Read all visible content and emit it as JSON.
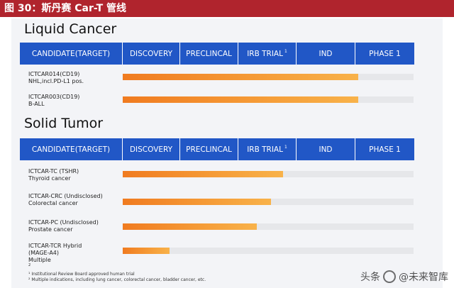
{
  "figure": {
    "title": "图 30：斯丹赛 Car-T 管线"
  },
  "chart_data": [
    {
      "type": "bar",
      "title": "Liquid Cancer",
      "columns": [
        "CANDIDATE(TARGET)",
        "DISCOVERY",
        "PRECLINCAL",
        "IRB TRIAL",
        "IND",
        "PHASE 1"
      ],
      "irb_marker": "1",
      "rows": [
        {
          "lines": [
            "ICTCAR014(CD19)",
            "NHL,incl.PD-L1 pos."
          ],
          "value": 0.81
        },
        {
          "lines": [
            "ICTCAR003(CD19)",
            "B-ALL"
          ],
          "value": 0.81
        }
      ]
    },
    {
      "type": "bar",
      "title": "Solid Tumor",
      "columns": [
        "CANDIDATE(TARGET)",
        "DISCOVERY",
        "PRECLINCAL",
        "IRB TRIAL",
        "IND",
        "PHASE 1"
      ],
      "irb_marker": "1",
      "rows": [
        {
          "lines": [
            "ICTCAR-TC (TSHR)",
            "Thyroid cancer"
          ],
          "value": 0.55
        },
        {
          "lines": [
            "ICTCAR-CRC (Undisclosed)",
            "Colorectal cancer"
          ],
          "value": 0.51
        },
        {
          "lines": [
            "ICTCAR-PC (Undisclosed)",
            "Prostate cancer"
          ],
          "value": 0.46
        },
        {
          "lines": [
            "ICTCAR-TCR Hybrid",
            "(MAGE-A4)",
            "Multiple"
          ],
          "value": 0.16,
          "last_line_marker": "2"
        }
      ]
    }
  ],
  "footnotes": [
    "¹ Institutional Review Board approved human trial",
    "² Multiple indications, including lung cancer, colorectal cancer, bladder cancer, etc."
  ],
  "watermark": {
    "left_text": "头条",
    "right_text": "@未来智库"
  },
  "colors": {
    "title_bar": "#b0242d",
    "header": "#2157c6",
    "fill_start": "#f07b20",
    "fill_end": "#f8b24a",
    "track": "#e6e7ea"
  }
}
